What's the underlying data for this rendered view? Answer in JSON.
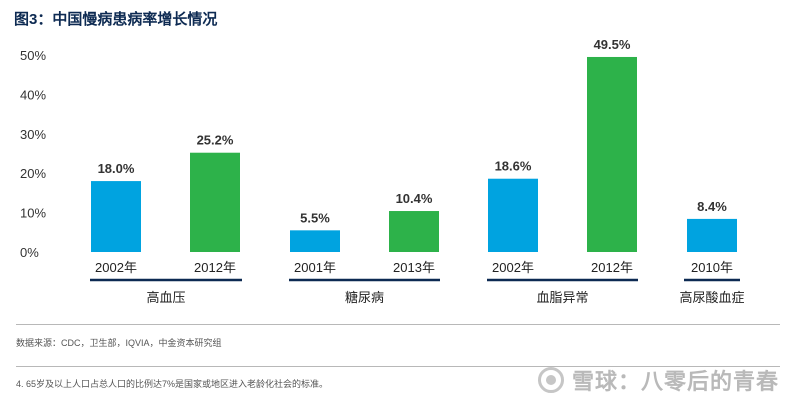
{
  "chart_data": {
    "type": "bar",
    "title": "图3：中国慢病患病率增长情况",
    "ylim": [
      0,
      50
    ],
    "yticks": [
      "0%",
      "10%",
      "20%",
      "30%",
      "40%",
      "50%"
    ],
    "grid": false,
    "groups": [
      {
        "name": "高血压",
        "bars": [
          {
            "year": "2002年",
            "value": 18.0,
            "label": "18.0%",
            "color": "#00a3e0"
          },
          {
            "year": "2012年",
            "value": 25.2,
            "label": "25.2%",
            "color": "#2db24a"
          }
        ]
      },
      {
        "name": "糖尿病",
        "bars": [
          {
            "year": "2001年",
            "value": 5.5,
            "label": "5.5%",
            "color": "#00a3e0"
          },
          {
            "year": "2013年",
            "value": 10.4,
            "label": "10.4%",
            "color": "#2db24a"
          }
        ]
      },
      {
        "name": "血脂异常",
        "bars": [
          {
            "year": "2002年",
            "value": 18.6,
            "label": "18.6%",
            "color": "#00a3e0"
          },
          {
            "year": "2012年",
            "value": 49.5,
            "label": "49.5%",
            "color": "#2db24a"
          }
        ]
      },
      {
        "name": "高尿酸血症",
        "bars": [
          {
            "year": "2010年",
            "value": 8.4,
            "label": "8.4%",
            "color": "#00a3e0"
          }
        ]
      }
    ]
  },
  "source": "数据来源：CDC，卫生部，IQVIA，中金资本研究组",
  "footnote": "4. 65岁及以上人口占总人口的比例达7%是国家或地区进入老龄化社会的标准。",
  "watermark": "雪球：八零后的青春",
  "colors": {
    "blue": "#00a3e0",
    "green": "#2db24a",
    "navy": "#0d2a52"
  }
}
